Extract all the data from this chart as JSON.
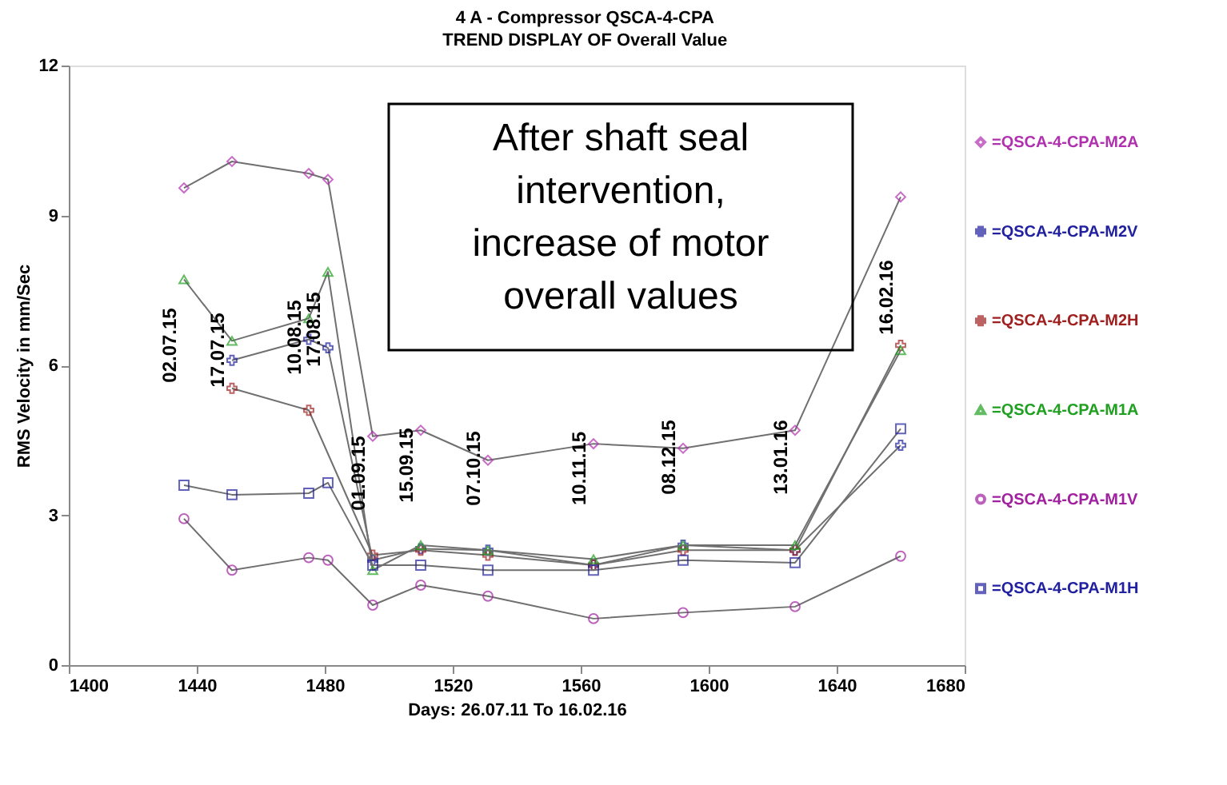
{
  "chart_data": {
    "type": "line",
    "title": "4  A - Compressor        QSCA-4-CPA",
    "subtitle": "TREND DISPLAY OF Overall Value",
    "xlabel": "Days:  26.07.11   To  16.02.16",
    "ylabel": "RMS Velocity in mm/Sec",
    "x": [
      1436,
      1451,
      1475,
      1481,
      1495,
      1510,
      1531,
      1564,
      1592,
      1627,
      1660
    ],
    "series": [
      {
        "name": "=QSCA-4-CPA-M2A",
        "color": "#b030b0",
        "marker": "diamond",
        "values": [
          9.55,
          10.08,
          9.84,
          9.72,
          4.58,
          4.7,
          4.1,
          4.43,
          4.34,
          4.7,
          9.37
        ]
      },
      {
        "name": "=QSCA-4-CPA-M2V",
        "color": "#2020a0",
        "marker": "cross",
        "values": [
          null,
          6.1,
          6.52,
          6.35,
          2.1,
          2.33,
          2.3,
          2.0,
          2.4,
          2.3,
          4.4
        ]
      },
      {
        "name": "=QSCA-4-CPA-M2H",
        "color": "#a02020",
        "marker": "cross",
        "values": [
          null,
          5.54,
          5.1,
          null,
          2.2,
          2.3,
          2.2,
          2.0,
          2.3,
          2.3,
          6.4
        ]
      },
      {
        "name": "=QSCA-4-CPA-M1A",
        "color": "#20a020",
        "marker": "triangle",
        "values": [
          7.72,
          6.49,
          6.94,
          7.87,
          1.9,
          2.4,
          2.3,
          2.12,
          2.4,
          2.4,
          6.3
        ]
      },
      {
        "name": "=QSCA-4-CPA-M1V",
        "color": "#a020a0",
        "marker": "circle",
        "values": [
          2.93,
          1.9,
          2.15,
          2.1,
          1.2,
          1.6,
          1.38,
          0.93,
          1.05,
          1.17,
          2.18
        ]
      },
      {
        "name": "=QSCA-4-CPA-M1H",
        "color": "#2020a0",
        "marker": "square",
        "values": [
          3.6,
          3.41,
          3.44,
          3.65,
          2.0,
          2.0,
          1.9,
          1.9,
          2.1,
          2.05,
          4.73
        ]
      }
    ],
    "xlim": [
      1400,
      1680
    ],
    "xticks": [
      1400,
      1440,
      1480,
      1520,
      1560,
      1600,
      1640,
      1680
    ],
    "ylim": [
      0,
      12
    ],
    "yticks": [
      0,
      3,
      6,
      9,
      12
    ],
    "grid": false,
    "legend": "right",
    "annotations": [
      "02.07.15",
      "17.07.15",
      "10.08.15",
      "17.08.15",
      "01.09.15",
      "15.09.15",
      "07.10.15",
      "10.11.15",
      "08.12.15",
      "13.01.16",
      "16.02.16",
      "After shaft seal\nintervention,\nincrease of motor\noverall values"
    ]
  }
}
